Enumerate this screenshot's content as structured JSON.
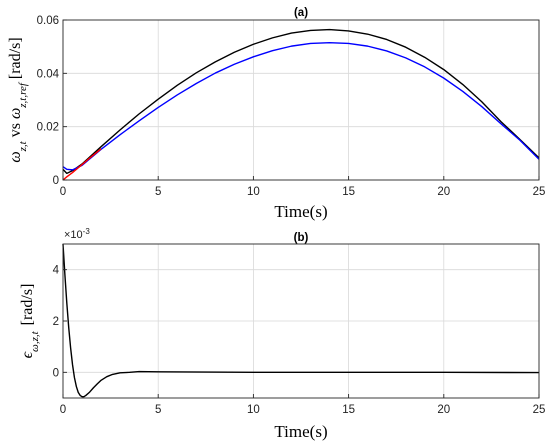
{
  "chart_data": [
    {
      "type": "line",
      "title": "(a)",
      "xlabel": "Time(s)",
      "ylabel": {
        "main": "ω",
        "sub1": "z,t",
        "mid": " vs ",
        "main2": "ω",
        "sub2": "z,t,ref",
        "unit": "[rad/s]"
      },
      "xlim": [
        0,
        25
      ],
      "ylim": [
        0,
        0.06
      ],
      "xticks": [
        "0",
        "5",
        "10",
        "15",
        "20",
        "25"
      ],
      "yticks": [
        "0",
        "0.02",
        "0.04",
        "0.06"
      ],
      "grid": true,
      "series": [
        {
          "color": "#000000",
          "x": [
            0,
            0.2,
            0.5,
            1,
            2,
            3,
            4,
            5,
            6,
            7,
            8,
            9,
            10,
            11,
            12,
            13,
            14,
            15,
            16,
            17,
            18,
            19,
            20,
            21,
            22,
            23,
            24,
            25
          ],
          "y": [
            0.004,
            0.0025,
            0.0035,
            0.006,
            0.0125,
            0.0188,
            0.0248,
            0.0303,
            0.0355,
            0.0402,
            0.0443,
            0.0479,
            0.0509,
            0.0533,
            0.0551,
            0.0561,
            0.0564,
            0.0559,
            0.0547,
            0.0527,
            0.0498,
            0.046,
            0.0414,
            0.0358,
            0.0293,
            0.0219,
            0.0152,
            0.0083
          ]
        },
        {
          "color": "#0000ff",
          "x": [
            0,
            0.2,
            0.5,
            1,
            2,
            3,
            4,
            5,
            6,
            7,
            8,
            9,
            10,
            11,
            12,
            13,
            14,
            15,
            16,
            17,
            18,
            19,
            20,
            21,
            22,
            23,
            24,
            25
          ],
          "y": [
            0.005,
            0.004,
            0.0038,
            0.0055,
            0.0115,
            0.017,
            0.0222,
            0.0272,
            0.0319,
            0.0362,
            0.0401,
            0.0434,
            0.0462,
            0.0485,
            0.0502,
            0.0512,
            0.0515,
            0.0512,
            0.0502,
            0.0484,
            0.0458,
            0.0424,
            0.0382,
            0.0332,
            0.0275,
            0.0211,
            0.0149,
            0.0078
          ]
        },
        {
          "color": "#ff0000",
          "x": [
            0,
            0.2,
            0.5,
            1,
            1.5,
            2
          ],
          "y": [
            0,
            0.0012,
            0.0028,
            0.0058,
            0.0088,
            0.0117
          ]
        }
      ]
    },
    {
      "type": "line",
      "title": "(b)",
      "xlabel": "Time(s)",
      "ylabel": {
        "main": "ϵ",
        "sub1": "ω,z,t",
        "unit": "[rad/s]"
      },
      "multiplier": "×10",
      "multiplier_exp": "-3",
      "xlim": [
        0,
        25
      ],
      "ylim": [
        -1,
        5
      ],
      "xticks": [
        "0",
        "5",
        "10",
        "15",
        "20",
        "25"
      ],
      "yticks": [
        "0",
        "2",
        "4"
      ],
      "grid": true,
      "series": [
        {
          "color": "#000000",
          "x": [
            0,
            0.1,
            0.2,
            0.3,
            0.4,
            0.5,
            0.6,
            0.7,
            0.8,
            0.9,
            1.0,
            1.1,
            1.2,
            1.4,
            1.6,
            1.8,
            2.0,
            2.3,
            2.6,
            3.0,
            3.5,
            4.0,
            5,
            10,
            15,
            20,
            25
          ],
          "y": [
            5.0,
            3.8,
            2.7,
            1.75,
            0.95,
            0.3,
            -0.2,
            -0.55,
            -0.78,
            -0.9,
            -0.95,
            -0.95,
            -0.9,
            -0.77,
            -0.6,
            -0.45,
            -0.31,
            -0.17,
            -0.08,
            -0.02,
            0.0,
            0.03,
            0.02,
            0.0,
            0.0,
            0.0,
            -0.01
          ]
        }
      ]
    }
  ]
}
